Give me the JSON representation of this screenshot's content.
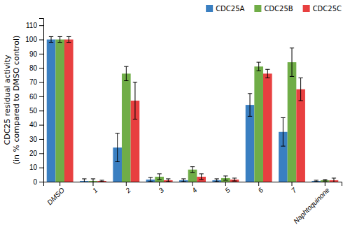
{
  "chart_data": {
    "type": "bar",
    "ylabel": "CDC25 residual activity\n(in % compared to DMSO control)",
    "categories": [
      "DMSO",
      "1",
      "2",
      "3",
      "4",
      "5",
      "6",
      "7",
      "Naphtoquinone"
    ],
    "series": [
      {
        "name": "CDC25A",
        "color": "#3A7FC1",
        "values": [
          100,
          0.5,
          24,
          1.5,
          1,
          1,
          54,
          35,
          0.5
        ],
        "errors": [
          2,
          1.5,
          10,
          1.5,
          1,
          1,
          8,
          10,
          0.5
        ]
      },
      {
        "name": "CDC25B",
        "color": "#70AD47",
        "values": [
          100,
          0.5,
          76,
          3.5,
          8.5,
          2.5,
          81,
          84,
          1
        ],
        "errors": [
          2,
          1.5,
          5,
          2,
          2,
          1.5,
          3,
          10,
          0.5
        ]
      },
      {
        "name": "CDC25C",
        "color": "#E84040",
        "values": [
          100,
          0.5,
          57,
          1,
          3.5,
          1.5,
          76,
          65,
          1
        ],
        "errors": [
          2,
          0.5,
          13,
          1,
          2,
          1,
          3,
          8,
          1.5
        ]
      }
    ],
    "ylim": [
      0,
      115
    ],
    "yticks": [
      0,
      10,
      20,
      30,
      40,
      50,
      60,
      70,
      80,
      90,
      100,
      110
    ],
    "legend": "upper right",
    "grid": false
  }
}
